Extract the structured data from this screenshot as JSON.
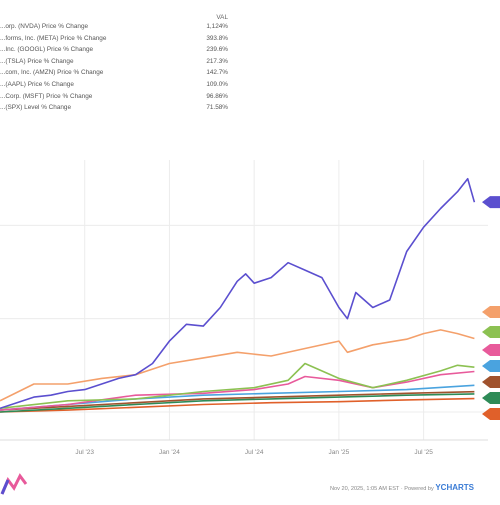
{
  "legend": {
    "header": "VAL",
    "rows": [
      {
        "label": "...orp. (NVDA) Price % Change",
        "value": "1,124%",
        "color": "#5b4fcf"
      },
      {
        "label": "...forms, Inc. (META) Price % Change",
        "value": "393.8%",
        "color": "#f4a06b"
      },
      {
        "label": "...Inc. (GOOGL) Price % Change",
        "value": "239.6%",
        "color": "#8cc152"
      },
      {
        "label": "...(TSLA) Price % Change",
        "value": "217.3%",
        "color": "#e85a9b"
      },
      {
        "label": "...com, Inc. (AMZN) Price % Change",
        "value": "142.7%",
        "color": "#4aa3df"
      },
      {
        "label": "...(AAPL) Price % Change",
        "value": "109.0%",
        "color": "#a0522d"
      },
      {
        "label": "...Corp. (MSFT) Price % Change",
        "value": "96.86%",
        "color": "#2e8b57"
      },
      {
        "label": "...(SPX) Level % Change",
        "value": "71.58%",
        "color": "#e0602a"
      }
    ]
  },
  "footer": {
    "date": "Nov 20, 2025, 1:05 AM EST",
    "powered": "Powered by",
    "brand": "YCHARTS"
  },
  "chart_data": {
    "type": "line",
    "x_ticks": [
      "Jul '23",
      "Jan '24",
      "Jul '24",
      "Jan '25",
      "Jul '25"
    ],
    "x_tick_positions": [
      0.5,
      1.0,
      1.5,
      2.0,
      2.5
    ],
    "xlim": [
      0,
      2.88
    ],
    "ylim": [
      -150,
      1350
    ],
    "ylabel": "",
    "xlabel": "",
    "grid": true,
    "series": [
      {
        "name": "NVDA",
        "color": "#5b4fcf",
        "x": [
          0,
          0.1,
          0.2,
          0.3,
          0.4,
          0.5,
          0.6,
          0.7,
          0.8,
          0.9,
          1.0,
          1.1,
          1.2,
          1.3,
          1.4,
          1.45,
          1.5,
          1.6,
          1.7,
          1.8,
          1.9,
          2.0,
          2.05,
          2.1,
          2.2,
          2.3,
          2.4,
          2.5,
          2.6,
          2.7,
          2.76,
          2.8
        ],
        "y": [
          20,
          50,
          80,
          90,
          110,
          120,
          150,
          180,
          200,
          260,
          380,
          470,
          460,
          560,
          700,
          740,
          690,
          720,
          800,
          760,
          720,
          560,
          500,
          640,
          560,
          600,
          860,
          990,
          1090,
          1180,
          1250,
          1124
        ]
      },
      {
        "name": "META",
        "color": "#f4a06b",
        "x": [
          0,
          0.2,
          0.4,
          0.6,
          0.8,
          1.0,
          1.2,
          1.4,
          1.6,
          1.8,
          2.0,
          2.05,
          2.2,
          2.4,
          2.5,
          2.6,
          2.7,
          2.8
        ],
        "y": [
          60,
          150,
          150,
          180,
          200,
          260,
          290,
          320,
          300,
          340,
          380,
          320,
          360,
          390,
          420,
          440,
          420,
          394
        ]
      },
      {
        "name": "GOOGL",
        "color": "#8cc152",
        "x": [
          0,
          0.4,
          0.8,
          1.2,
          1.5,
          1.7,
          1.8,
          2.0,
          2.2,
          2.4,
          2.6,
          2.7,
          2.8
        ],
        "y": [
          20,
          60,
          70,
          110,
          130,
          170,
          260,
          180,
          130,
          170,
          220,
          250,
          240
        ]
      },
      {
        "name": "TSLA",
        "color": "#e85a9b",
        "x": [
          0,
          0.4,
          0.8,
          1.2,
          1.5,
          1.7,
          1.8,
          2.0,
          2.2,
          2.4,
          2.6,
          2.8
        ],
        "y": [
          10,
          40,
          90,
          100,
          120,
          150,
          190,
          170,
          130,
          160,
          200,
          217
        ]
      },
      {
        "name": "AMZN",
        "color": "#4aa3df",
        "x": [
          0,
          0.4,
          0.8,
          1.2,
          1.6,
          2.0,
          2.4,
          2.8
        ],
        "y": [
          10,
          40,
          70,
          90,
          100,
          110,
          120,
          143
        ]
      },
      {
        "name": "AAPL",
        "color": "#a0522d",
        "x": [
          0,
          0.4,
          0.8,
          1.2,
          1.6,
          2.0,
          2.4,
          2.8
        ],
        "y": [
          10,
          30,
          50,
          70,
          80,
          90,
          100,
          109
        ]
      },
      {
        "name": "MSFT",
        "color": "#2e8b57",
        "x": [
          0,
          0.4,
          0.8,
          1.2,
          1.6,
          2.0,
          2.4,
          2.8
        ],
        "y": [
          0,
          20,
          40,
          60,
          70,
          80,
          90,
          97
        ]
      },
      {
        "name": "SPX",
        "color": "#e0602a",
        "x": [
          0,
          0.4,
          0.8,
          1.2,
          1.6,
          2.0,
          2.4,
          2.8
        ],
        "y": [
          0,
          10,
          25,
          40,
          50,
          55,
          65,
          72
        ]
      }
    ]
  }
}
